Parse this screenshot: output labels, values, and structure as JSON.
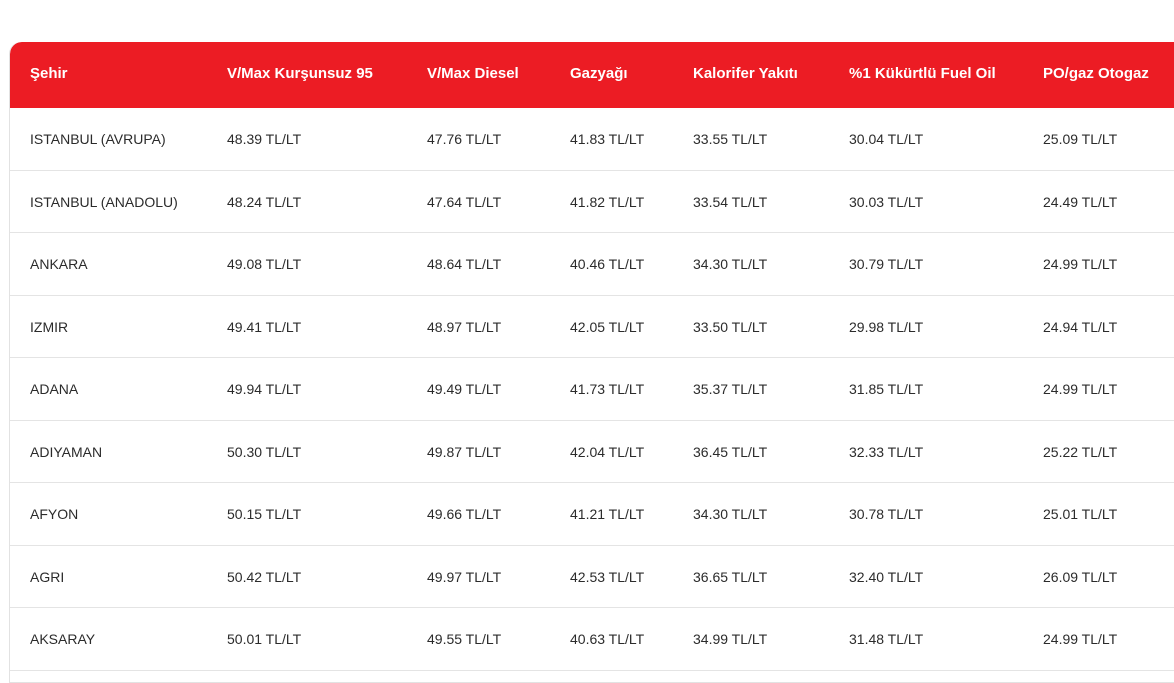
{
  "table": {
    "columns": [
      "Şehir",
      "V/Max Kurşunsuz 95",
      "V/Max Diesel",
      "Gazyağı",
      "Kalorifer Yakıtı",
      "%1 Kükürtlü Fuel Oil",
      "PO/gaz Otogaz"
    ],
    "rows": [
      [
        "ISTANBUL (AVRUPA)",
        "48.39 TL/LT",
        "47.76 TL/LT",
        "41.83 TL/LT",
        "33.55 TL/LT",
        "30.04 TL/LT",
        "25.09 TL/LT"
      ],
      [
        "ISTANBUL (ANADOLU)",
        "48.24 TL/LT",
        "47.64 TL/LT",
        "41.82 TL/LT",
        "33.54 TL/LT",
        "30.03 TL/LT",
        "24.49 TL/LT"
      ],
      [
        "ANKARA",
        "49.08 TL/LT",
        "48.64 TL/LT",
        "40.46 TL/LT",
        "34.30 TL/LT",
        "30.79 TL/LT",
        "24.99 TL/LT"
      ],
      [
        "IZMIR",
        "49.41 TL/LT",
        "48.97 TL/LT",
        "42.05 TL/LT",
        "33.50 TL/LT",
        "29.98 TL/LT",
        "24.94 TL/LT"
      ],
      [
        "ADANA",
        "49.94 TL/LT",
        "49.49 TL/LT",
        "41.73 TL/LT",
        "35.37 TL/LT",
        "31.85 TL/LT",
        "24.99 TL/LT"
      ],
      [
        "ADIYAMAN",
        "50.30 TL/LT",
        "49.87 TL/LT",
        "42.04 TL/LT",
        "36.45 TL/LT",
        "32.33 TL/LT",
        "25.22 TL/LT"
      ],
      [
        "AFYON",
        "50.15 TL/LT",
        "49.66 TL/LT",
        "41.21 TL/LT",
        "34.30 TL/LT",
        "30.78 TL/LT",
        "25.01 TL/LT"
      ],
      [
        "AGRI",
        "50.42 TL/LT",
        "49.97 TL/LT",
        "42.53 TL/LT",
        "36.65 TL/LT",
        "32.40 TL/LT",
        "26.09 TL/LT"
      ],
      [
        "AKSARAY",
        "50.01 TL/LT",
        "49.55 TL/LT",
        "40.63 TL/LT",
        "34.99 TL/LT",
        "31.48 TL/LT",
        "24.99 TL/LT"
      ]
    ]
  },
  "colors": {
    "header_bg": "#ec1c24",
    "header_text": "#ffffff",
    "body_text": "#2b2b2b",
    "row_border": "#e4e4e4"
  }
}
